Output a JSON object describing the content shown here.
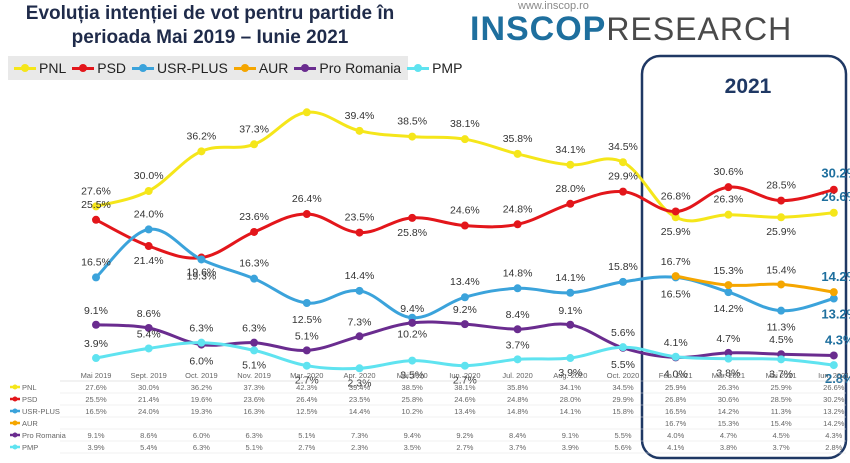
{
  "title": "Evoluția intenției de vot pentru partide în perioada Mai 2019 – Iunie 2021",
  "brand": {
    "url": "www.inscop.ro",
    "name_bold": "INSCOP",
    "name_light": "RESEARCH"
  },
  "highlight_label": "2021",
  "chart_data": {
    "type": "line",
    "title": "Evoluția intenției de vot pentru partide în perioada Mai 2019 – Iunie 2021",
    "categories": [
      "Mai 2019",
      "Sept. 2019",
      "Oct. 2019",
      "Nov. 2019",
      "Mar. 2020",
      "Apr. 2020",
      "Mai 2020",
      "Iun. 2020",
      "Jul. 2020",
      "Aug. 2020",
      "Oct. 2020",
      "Feb. 2021",
      "Mar. 2021",
      "Mai 2021",
      "Iun. 2021"
    ],
    "series": [
      {
        "name": "PNL",
        "color": "#f5e61a",
        "values": [
          27.6,
          30.0,
          36.2,
          37.3,
          42.3,
          39.4,
          38.5,
          38.1,
          35.8,
          34.1,
          34.5,
          25.9,
          26.3,
          25.9,
          26.6
        ],
        "labels": [
          "27.6%",
          "30.0%",
          "36.2%",
          "37.3%",
          "",
          "39.4%",
          "38.5%",
          "38.1%",
          "35.8%",
          "34.1%",
          "34.5%",
          "25.9%",
          "26.3%",
          "25.9%",
          "26.6%"
        ],
        "table": [
          "27.6%",
          "30.0%",
          "36.2%",
          "37.3%",
          "42.3%",
          "39.4%",
          "38.5%",
          "38.1%",
          "35.8%",
          "34.1%",
          "34.5%",
          "25.9%",
          "26.3%",
          "25.9%",
          "26.6%"
        ]
      },
      {
        "name": "PSD",
        "color": "#e3161b",
        "values": [
          25.5,
          21.4,
          19.6,
          23.6,
          26.4,
          23.5,
          25.8,
          24.6,
          24.8,
          28.0,
          29.9,
          26.8,
          30.6,
          28.5,
          30.2
        ],
        "labels": [
          "25.5%",
          "21.4%",
          "19.6%",
          "23.6%",
          "26.4%",
          "23.5%",
          "25.8%",
          "24.6%",
          "24.8%",
          "28.0%",
          "29.9%",
          "26.8%",
          "30.6%",
          "28.5%",
          "30.2%"
        ],
        "table": [
          "25.5%",
          "21.4%",
          "19.6%",
          "23.6%",
          "26.4%",
          "23.5%",
          "25.8%",
          "24.6%",
          "24.8%",
          "28.0%",
          "29.9%",
          "26.8%",
          "30.6%",
          "28.5%",
          "30.2%"
        ]
      },
      {
        "name": "USR-PLUS",
        "color": "#3ba3db",
        "values": [
          16.5,
          24.0,
          19.3,
          16.3,
          12.5,
          14.4,
          10.2,
          13.4,
          14.8,
          14.1,
          15.8,
          16.5,
          14.2,
          11.3,
          13.2
        ],
        "labels": [
          "16.5%",
          "24.0%",
          "19.3%",
          "16.3%",
          "12.5%",
          "14.4%",
          "10.2%",
          "13.4%",
          "14.8%",
          "14.1%",
          "15.8%",
          "16.5%",
          "14.2%",
          "11.3%",
          "13.2%"
        ],
        "table": [
          "16.5%",
          "24.0%",
          "19.3%",
          "16.3%",
          "12.5%",
          "14.4%",
          "10.2%",
          "13.4%",
          "14.8%",
          "14.1%",
          "15.8%",
          "16.5%",
          "14.2%",
          "11.3%",
          "13.2%"
        ]
      },
      {
        "name": "AUR",
        "color": "#f5a600",
        "values": [
          null,
          null,
          null,
          null,
          null,
          null,
          null,
          null,
          null,
          null,
          null,
          16.7,
          15.3,
          15.4,
          14.2
        ],
        "labels": [
          "",
          "",
          "",
          "",
          "",
          "",
          "",
          "",
          "",
          "",
          "",
          "16.7%",
          "15.3%",
          "15.4%",
          "14.2%"
        ],
        "table": [
          "",
          "",
          "",
          "",
          "",
          "",
          "",
          "",
          "",
          "",
          "",
          "16.7%",
          "15.3%",
          "15.4%",
          "14.2%"
        ]
      },
      {
        "name": "Pro Romania",
        "color": "#6a2c8f",
        "values": [
          9.1,
          8.6,
          6.0,
          6.3,
          5.1,
          7.3,
          9.4,
          9.2,
          8.4,
          9.1,
          5.5,
          4.0,
          4.7,
          4.5,
          4.3
        ],
        "labels": [
          "9.1%",
          "8.6%",
          "6.0%",
          "6.3%",
          "5.1%",
          "7.3%",
          "9.4%",
          "9.2%",
          "8.4%",
          "9.1%",
          "5.5%",
          "4.0%",
          "4.7%",
          "4.5%",
          "4.3%"
        ],
        "table": [
          "9.1%",
          "8.6%",
          "6.0%",
          "6.3%",
          "5.1%",
          "7.3%",
          "9.4%",
          "9.2%",
          "8.4%",
          "9.1%",
          "5.5%",
          "4.0%",
          "4.7%",
          "4.5%",
          "4.3%"
        ]
      },
      {
        "name": "PMP",
        "color": "#5fe3f0",
        "values": [
          3.9,
          5.4,
          6.3,
          5.1,
          2.7,
          2.3,
          3.5,
          2.7,
          3.7,
          3.9,
          5.6,
          4.1,
          3.8,
          3.7,
          2.8
        ],
        "labels": [
          "3.9%",
          "5.4%",
          "6.3%",
          "5.1%",
          "2.7%",
          "2.3%",
          "3.5%",
          "2.7%",
          "3.7%",
          "3.9%",
          "5.6%",
          "4.1%",
          "3.8%",
          "3.7%",
          "2.8%"
        ],
        "table": [
          "3.9%",
          "5.4%",
          "6.3%",
          "5.1%",
          "2.7%",
          "2.3%",
          "3.5%",
          "2.7%",
          "3.7%",
          "3.9%",
          "5.6%",
          "4.1%",
          "3.8%",
          "3.7%",
          "2.8%"
        ]
      }
    ],
    "legend_position": "top-left",
    "grid": false
  }
}
